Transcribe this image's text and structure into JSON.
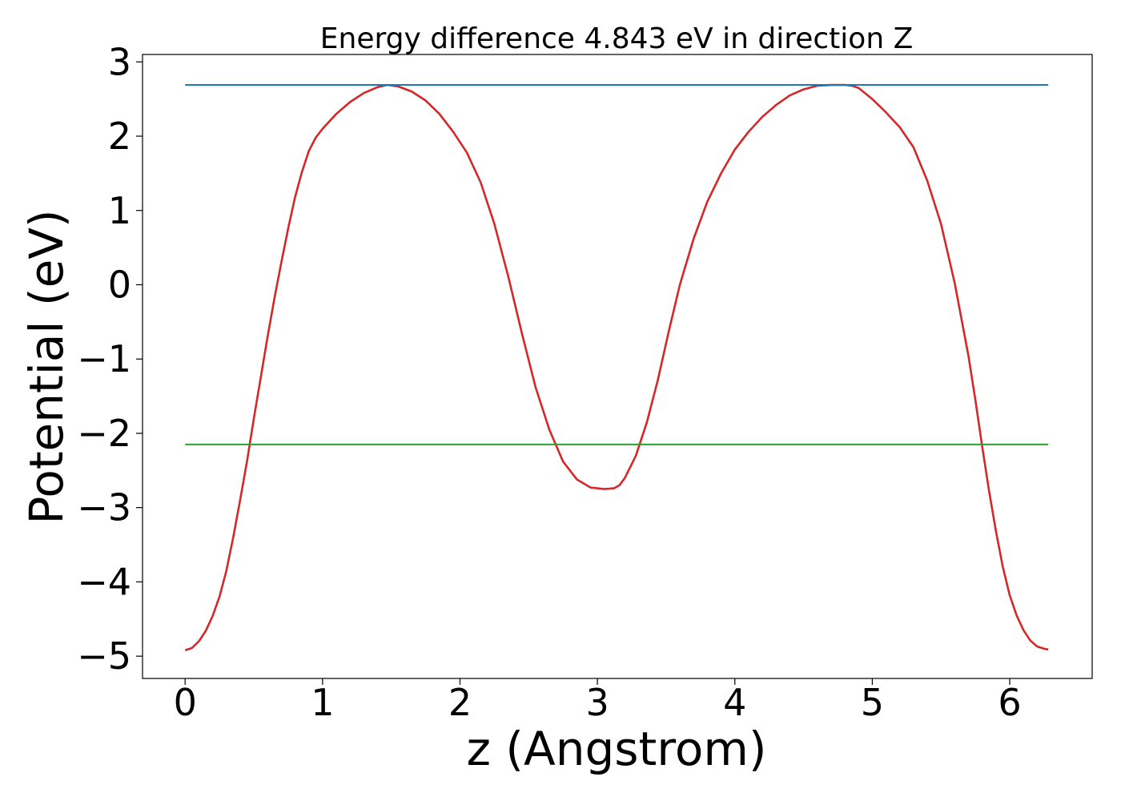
{
  "chart_data": {
    "type": "line",
    "title": "Energy difference 4.843 eV in direction Z",
    "xlabel": "z (Angstrom)",
    "ylabel": "Potential (eV)",
    "xlim": [
      -0.31,
      6.6
    ],
    "ylim": [
      -5.3,
      3.1
    ],
    "x_ticks": [
      "0",
      "1",
      "2",
      "3",
      "4",
      "5",
      "6"
    ],
    "y_ticks": [
      "3",
      "2",
      "1",
      "0",
      "−1",
      "−2",
      "−3",
      "−4",
      "−5"
    ],
    "grid": false,
    "series": [
      {
        "color": "#d62728",
        "x": [
          0.0,
          0.05,
          0.1,
          0.15,
          0.2,
          0.25,
          0.3,
          0.35,
          0.4,
          0.45,
          0.5,
          0.55,
          0.6,
          0.65,
          0.7,
          0.75,
          0.8,
          0.85,
          0.9,
          0.95,
          1.0,
          1.1,
          1.2,
          1.3,
          1.4,
          1.47,
          1.55,
          1.65,
          1.75,
          1.85,
          1.95,
          2.05,
          2.15,
          2.25,
          2.35,
          2.45,
          2.55,
          2.65,
          2.75,
          2.85,
          2.95,
          3.05,
          3.12,
          3.16,
          3.2,
          3.28,
          3.36,
          3.44,
          3.52,
          3.6,
          3.7,
          3.8,
          3.9,
          4.0,
          4.1,
          4.2,
          4.3,
          4.4,
          4.5,
          4.6,
          4.7,
          4.8,
          4.85,
          4.9,
          5.0,
          5.1,
          5.2,
          5.3,
          5.4,
          5.5,
          5.6,
          5.7,
          5.75,
          5.8,
          5.85,
          5.9,
          5.95,
          6.0,
          6.05,
          6.1,
          6.15,
          6.2,
          6.25,
          6.28
        ],
        "values": [
          -4.92,
          -4.89,
          -4.8,
          -4.66,
          -4.46,
          -4.2,
          -3.85,
          -3.4,
          -2.9,
          -2.38,
          -1.8,
          -1.25,
          -0.7,
          -0.18,
          0.3,
          0.76,
          1.18,
          1.52,
          1.8,
          1.98,
          2.1,
          2.3,
          2.46,
          2.58,
          2.66,
          2.69,
          2.67,
          2.6,
          2.48,
          2.3,
          2.06,
          1.78,
          1.38,
          0.82,
          0.12,
          -0.65,
          -1.38,
          -1.95,
          -2.38,
          -2.62,
          -2.73,
          -2.75,
          -2.74,
          -2.7,
          -2.6,
          -2.3,
          -1.85,
          -1.28,
          -0.62,
          0.0,
          0.62,
          1.12,
          1.5,
          1.82,
          2.06,
          2.26,
          2.42,
          2.55,
          2.63,
          2.68,
          2.69,
          2.69,
          2.68,
          2.65,
          2.5,
          2.32,
          2.12,
          1.85,
          1.4,
          0.82,
          0.02,
          -0.96,
          -1.55,
          -2.18,
          -2.78,
          -3.32,
          -3.8,
          -4.18,
          -4.45,
          -4.65,
          -4.79,
          -4.87,
          -4.9,
          -4.91
        ]
      },
      {
        "color": "#1f77b4",
        "x": [
          0.0,
          6.28
        ],
        "values": [
          2.69,
          2.69
        ]
      },
      {
        "color": "#2ca02c",
        "x": [
          0.0,
          6.28
        ],
        "values": [
          -2.15,
          -2.15
        ]
      }
    ]
  }
}
